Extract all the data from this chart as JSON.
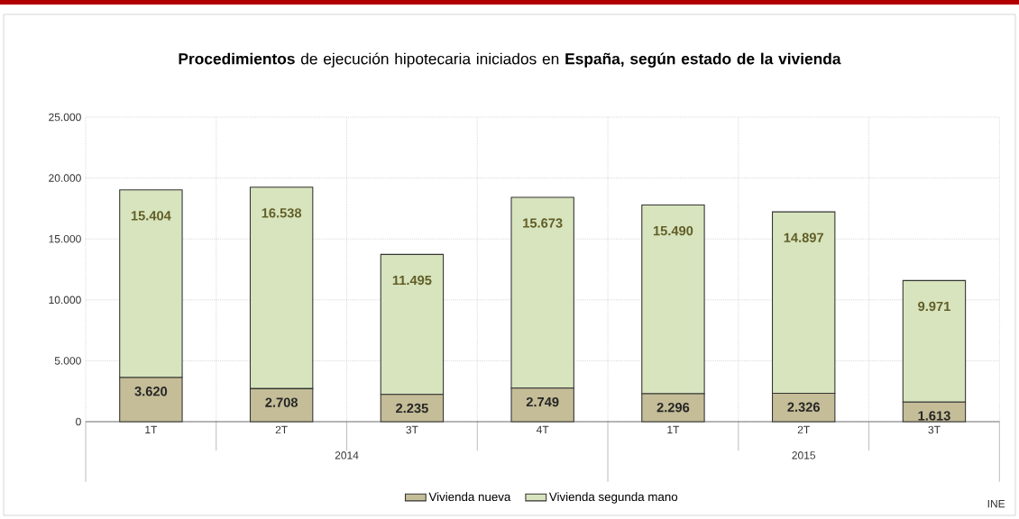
{
  "chart_data": {
    "type": "bar",
    "stacked": true,
    "title": "**Procedimientos** de ejecución hipotecaria iniciados en **España, según estado de la vivienda**",
    "categories": [
      "1T",
      "2T",
      "3T",
      "4T",
      "1T",
      "2T",
      "3T"
    ],
    "series": [
      {
        "name": "Vivienda nueva",
        "color": "#c4bd97",
        "values": [
          3620,
          2708,
          2235,
          2749,
          2296,
          2326,
          1613
        ],
        "value_labels": [
          "3.620",
          "2.708",
          "2.235",
          "2.749",
          "2.296",
          "2.326",
          "1.613"
        ]
      },
      {
        "name": "Vivienda segunda mano",
        "color": "#d7e4bd",
        "values": [
          15404,
          16538,
          11495,
          15673,
          15490,
          14897,
          9971
        ],
        "value_labels": [
          "15.404",
          "16.538",
          "11.495",
          "15.673",
          "15.490",
          "14.897",
          "9.971"
        ]
      }
    ],
    "ylim": [
      0,
      25000
    ],
    "yticks": [
      {
        "value": 0,
        "label": "0"
      },
      {
        "value": 5000,
        "label": "5.000"
      },
      {
        "value": 10000,
        "label": "10.000"
      },
      {
        "value": 15000,
        "label": "15.000"
      },
      {
        "value": 20000,
        "label": "20.000"
      },
      {
        "value": 25000,
        "label": "25.000"
      }
    ],
    "grid": true,
    "legend": "bottom",
    "annotations": [
      "2014",
      "2015",
      "INE"
    ]
  }
}
